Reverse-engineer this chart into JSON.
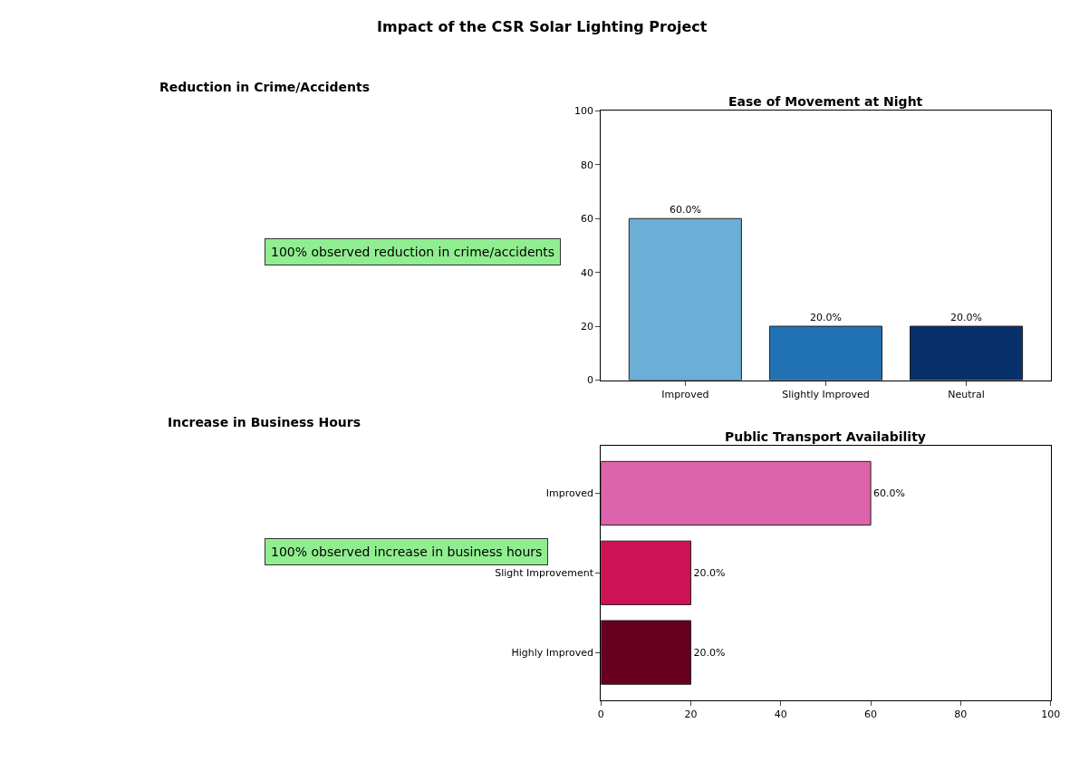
{
  "chart_data": [
    {
      "type": "other",
      "title": "Impact of the CSR Solar Lighting Project"
    },
    {
      "type": "other",
      "title": "Reduction in Crime/Accidents",
      "annotations": [
        "100% observed reduction in crime/accidents"
      ]
    },
    {
      "type": "bar",
      "title": "Ease of Movement at Night",
      "categories": [
        "Improved",
        "Slightly Improved",
        "Neutral"
      ],
      "values": [
        60,
        20,
        20
      ],
      "colors": [
        "#6baed6",
        "#2171b5",
        "#08306b"
      ],
      "value_labels": [
        "60.0%",
        "20.0%",
        "20.0%"
      ],
      "ylim": [
        0,
        100
      ],
      "yticks": [
        0,
        20,
        40,
        60,
        80,
        100
      ]
    },
    {
      "type": "other",
      "title": "Increase in Business Hours",
      "annotations": [
        "100% observed increase in business hours"
      ]
    },
    {
      "type": "bar",
      "orientation": "horizontal",
      "title": "Public Transport Availability",
      "categories": [
        "Improved",
        "Slight Improvement",
        "Highly Improved"
      ],
      "values": [
        60,
        20,
        20
      ],
      "colors": [
        "#dd63aa",
        "#ce1256",
        "#67001f"
      ],
      "value_labels": [
        "60.0%",
        "20.0%",
        "20.0%"
      ],
      "xlim": [
        0,
        100
      ],
      "xticks": [
        0,
        20,
        40,
        60,
        80,
        100
      ]
    }
  ]
}
